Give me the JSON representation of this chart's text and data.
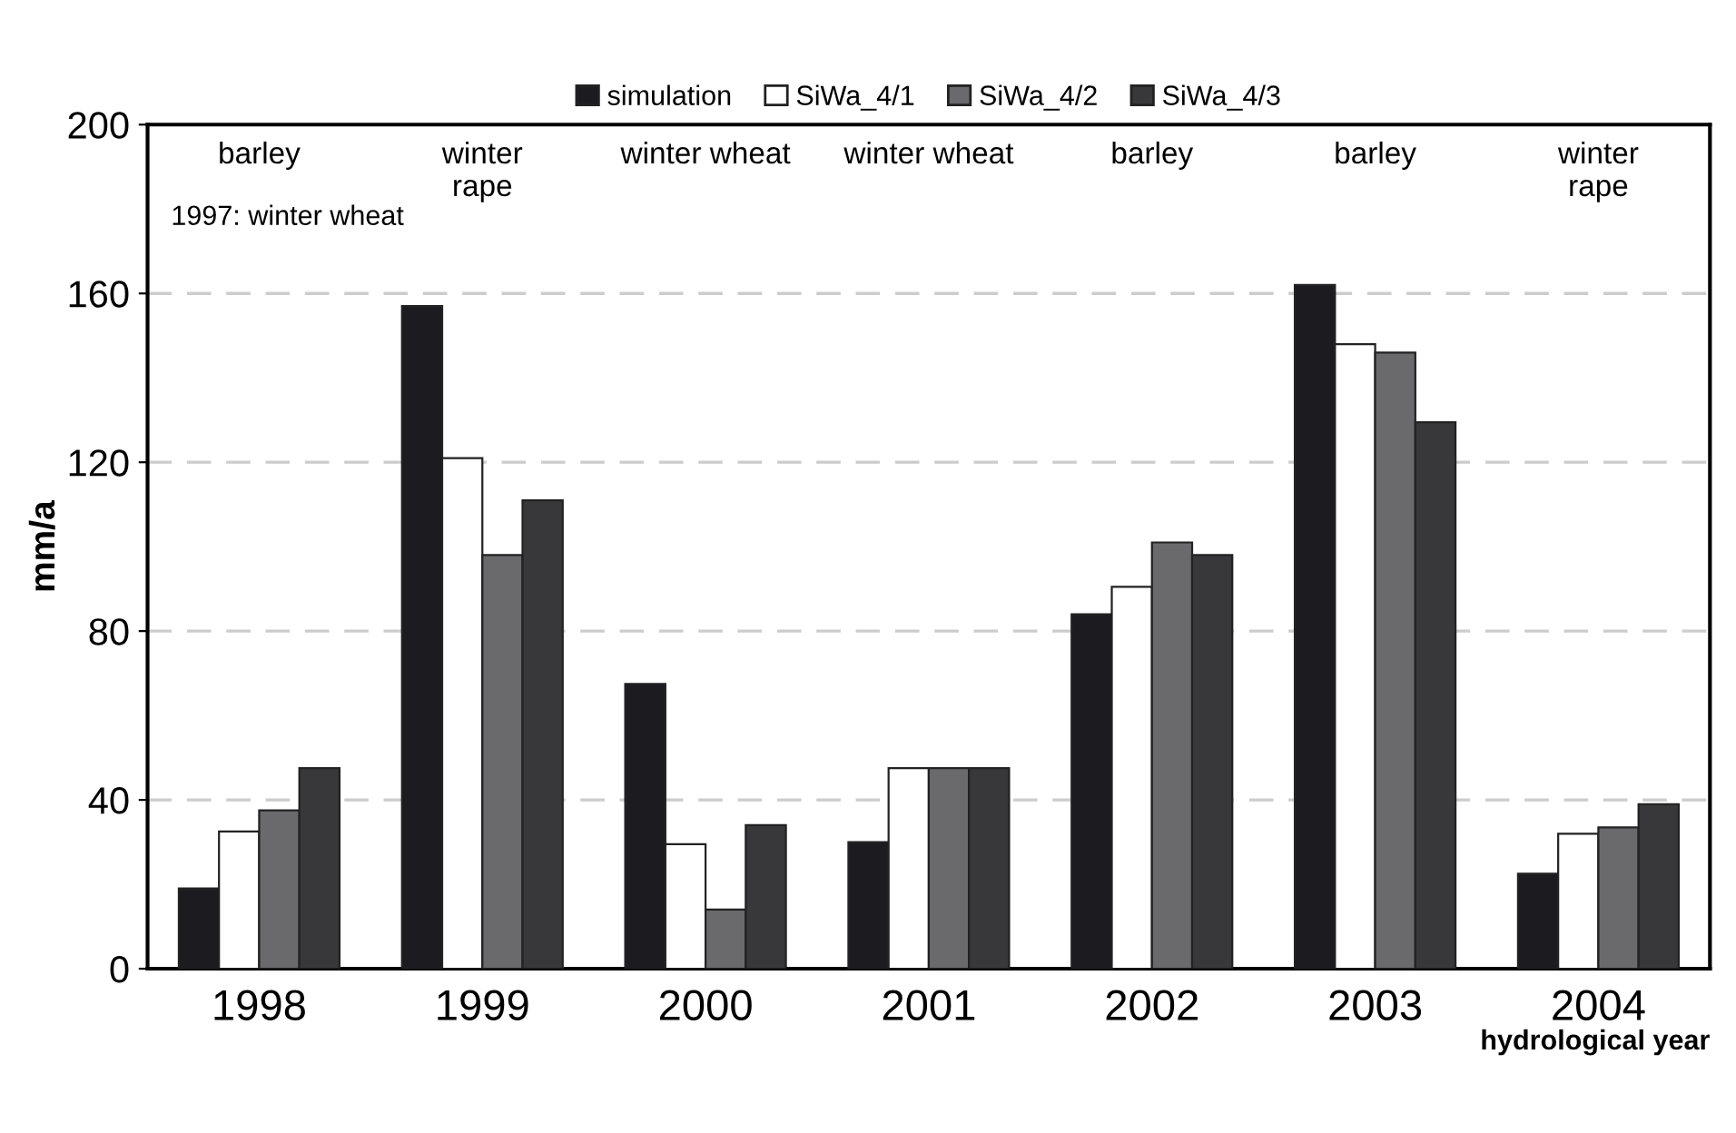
{
  "chart_data": {
    "type": "bar",
    "ylabel": "mm/a",
    "xlabel": "hydrological year",
    "categories": [
      "1998",
      "1999",
      "2000",
      "2001",
      "2002",
      "2003",
      "2004"
    ],
    "series": [
      {
        "name": "simulation",
        "color": "#1c1b20",
        "values": [
          19,
          157,
          67.5,
          30,
          84,
          162,
          22.5
        ]
      },
      {
        "name": "SiWa_4/1",
        "color": "#ffffff",
        "values": [
          32.5,
          121,
          29.5,
          47.5,
          90.5,
          148,
          32
        ]
      },
      {
        "name": "SiWa_4/2",
        "color": "#6a6a6c",
        "values": [
          37.5,
          98,
          14,
          47.5,
          101,
          146,
          33.5
        ]
      },
      {
        "name": "SiWa_4/3",
        "color": "#38383a",
        "values": [
          47.5,
          111,
          34,
          47.5,
          98,
          129.5,
          39
        ]
      }
    ],
    "ylim": [
      0,
      200
    ],
    "yticks": [
      0,
      40,
      80,
      120,
      160,
      200
    ],
    "grid": "y",
    "legend": "top",
    "annotations": [
      "barley",
      "winter\nrape",
      "winter wheat",
      "winter wheat",
      "barley",
      "barley",
      "winter\nrape",
      "1997: winter wheat"
    ]
  }
}
